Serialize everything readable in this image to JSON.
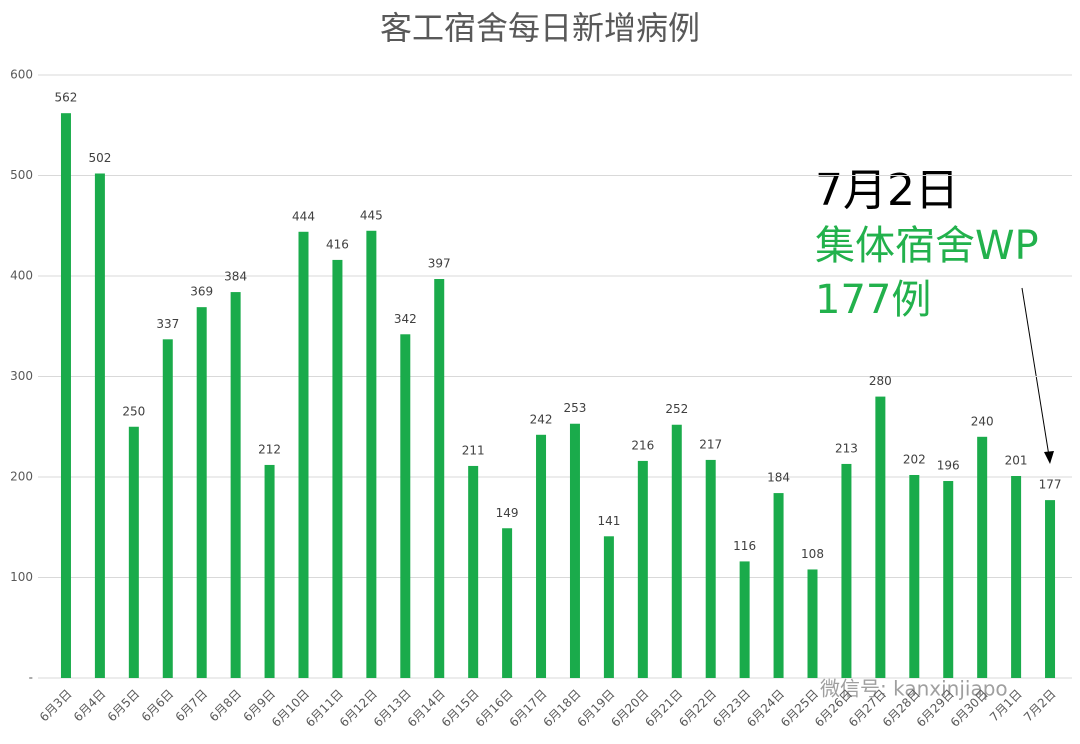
{
  "chart_data": {
    "type": "bar",
    "title": "客工宿舍每日新增病例",
    "categories": [
      "6月3日",
      "6月4日",
      "6月5日",
      "6月6日",
      "6月7日",
      "6月8日",
      "6月9日",
      "6月10日",
      "6月11日",
      "6月12日",
      "6月13日",
      "6月14日",
      "6月15日",
      "6月16日",
      "6月17日",
      "6月18日",
      "6月19日",
      "6月20日",
      "6月21日",
      "6月22日",
      "6月23日",
      "6月24日",
      "6月25日",
      "6月26日",
      "6月27日",
      "6月28日",
      "6月29日",
      "6月30日",
      "7月1日",
      "7月2日"
    ],
    "values": [
      562,
      502,
      250,
      337,
      369,
      384,
      212,
      444,
      416,
      445,
      342,
      397,
      211,
      149,
      242,
      253,
      141,
      216,
      252,
      217,
      116,
      184,
      108,
      213,
      280,
      202,
      196,
      240,
      201,
      177
    ],
    "color": "#1aab4b",
    "ylim": [
      0,
      600
    ],
    "yticks": [
      {
        "value": 0,
        "label": "-"
      },
      100,
      200,
      300,
      400,
      500,
      600
    ],
    "grid": true,
    "annotations": [
      "7月2日",
      "集体宿舍WP",
      "177例"
    ],
    "watermark": "微信号: kanxinjiapo"
  }
}
